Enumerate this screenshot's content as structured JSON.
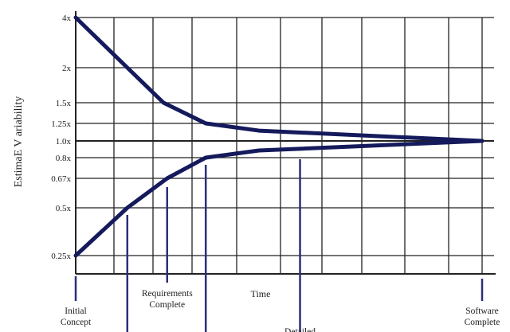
{
  "chart_data": {
    "type": "line",
    "title": "",
    "xlabel": "Time",
    "ylabel": "EstimaE V ariability",
    "y_ticks": [
      "4x",
      "2x",
      "1.5x",
      "1.25x",
      "1.0x",
      "0.8x",
      "0.67x",
      "0.5x",
      "0.25x"
    ],
    "y_tick_values": [
      4,
      2,
      1.5,
      1.25,
      1.0,
      0.8,
      0.67,
      0.5,
      0.25
    ],
    "xlim": [
      0,
      1
    ],
    "grid": true,
    "line_color": "#141a5c",
    "marker_color": "#2a2f7a",
    "series": [
      {
        "x": [
          0,
          0.127,
          0.216,
          0.32,
          0.451,
          1.0
        ],
        "values": [
          4,
          2,
          1.5,
          1.25,
          1.14,
          1.0
        ]
      },
      {
        "x": [
          0,
          0.127,
          0.225,
          0.32,
          0.451,
          1.0
        ],
        "values": [
          0.25,
          0.5,
          0.67,
          0.8,
          0.88,
          1.0
        ]
      }
    ],
    "milestones": [
      {
        "x": 0,
        "label": [
          "Initial",
          "Concept"
        ]
      },
      {
        "x": 0.127,
        "label": []
      },
      {
        "x": 0.225,
        "label": [
          "Requirements",
          "Complete"
        ]
      },
      {
        "x": 0.32,
        "label": []
      },
      {
        "x": 0.552,
        "label": [
          "Detailed"
        ]
      },
      {
        "x": 1.0,
        "label": [
          "Software",
          "Complete"
        ]
      }
    ]
  }
}
